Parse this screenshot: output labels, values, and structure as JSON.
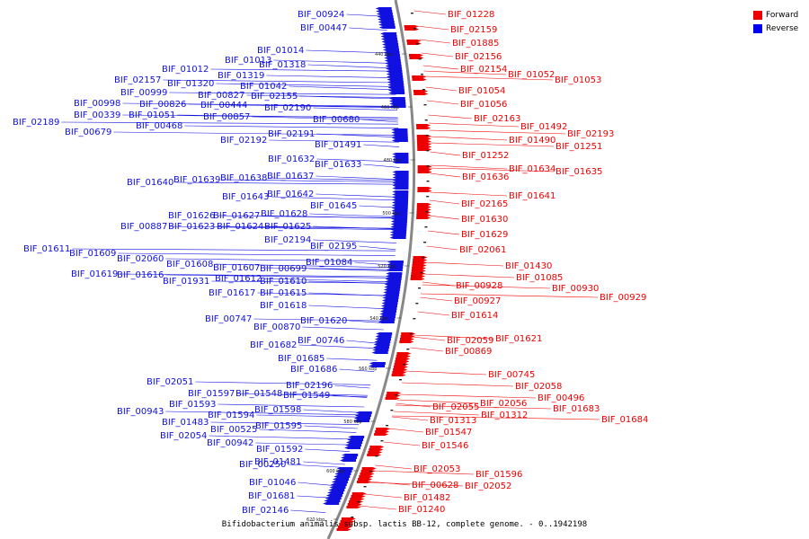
{
  "caption": "Bifidobacterium animalis subsp. lactis BB-12, complete genome. - 0..1942198",
  "legend": [
    {
      "label": "Forward",
      "color": "#ee0000"
    },
    {
      "label": "Reverse",
      "color": "#0000ee"
    }
  ],
  "colors": {
    "forward": "#ee0000",
    "reverse": "#1010e0",
    "backbone": "#888888"
  },
  "scale_ticks": [
    "440 kbp",
    "460 kbp",
    "480 kbp",
    "500 kbp",
    "520 kbp",
    "540 kbp",
    "560 kbp",
    "580 kbp",
    "600 kbp",
    "620 kbp"
  ],
  "reverse_genes": [
    "BIF_00924",
    "BIF_00447",
    "BIF_01014",
    "BIF_01013",
    "BIF_01318",
    "BIF_01012",
    "BIF_01319",
    "BIF_02157",
    "BIF_01320",
    "BIF_01042",
    "BIF_00999",
    "BIF_00827",
    "BIF_02155",
    "BIF_00998",
    "BIF_00826",
    "BIF_00444",
    "BIF_02190",
    "BIF_00339",
    "BIF_01051",
    "BIF_00857",
    "BIF_02189",
    "BIF_00468",
    "BIF_00680",
    "BIF_00679",
    "BIF_02191",
    "BIF_02192",
    "BIF_01491",
    "BIF_01632",
    "BIF_01633",
    "BIF_01637",
    "BIF_01640",
    "BIF_01639",
    "BIF_01638",
    "BIF_01642",
    "BIF_01643",
    "BIF_01645",
    "BIF_01626",
    "BIF_01627",
    "BIF_01628",
    "BIF_00887",
    "BIF_01623",
    "BIF_01624",
    "BIF_01625",
    "BIF_02194",
    "BIF_02195",
    "BIF_01611",
    "BIF_01609",
    "BIF_02060",
    "BIF_01084",
    "BIF_01608",
    "BIF_01607",
    "BIF_00699",
    "BIF_01619",
    "BIF_01616",
    "BIF_01612",
    "BIF_01931",
    "BIF_01610",
    "BIF_01617",
    "BIF_01615",
    "BIF_01618",
    "BIF_00747",
    "BIF_01620",
    "BIF_00870",
    "BIF_00746",
    "BIF_01682",
    "BIF_01685",
    "BIF_01686",
    "BIF_02196",
    "BIF_02051",
    "BIF_01597",
    "BIF_01548",
    "BIF_01549",
    "BIF_01593",
    "BIF_01598",
    "BIF_00943",
    "BIF_01594",
    "BIF_01483",
    "BIF_01595",
    "BIF_00525",
    "BIF_02054",
    "BIF_00942",
    "BIF_01592",
    "BIF_01481",
    "BIF_00250",
    "BIF_01046",
    "BIF_01681",
    "BIF_02146"
  ],
  "forward_genes": [
    "BIF_01228",
    "BIF_02159",
    "BIF_01885",
    "BIF_02156",
    "BIF_02154",
    "BIF_01052",
    "BIF_01053",
    "BIF_01054",
    "BIF_01056",
    "BIF_02163",
    "BIF_01492",
    "BIF_02193",
    "BIF_01490",
    "BIF_01251",
    "BIF_01252",
    "BIF_01634",
    "BIF_01635",
    "BIF_01636",
    "BIF_01641",
    "BIF_02165",
    "BIF_01630",
    "BIF_01629",
    "BIF_02061",
    "BIF_01430",
    "BIF_01085",
    "BIF_00930",
    "BIF_00928",
    "BIF_00929",
    "BIF_00927",
    "BIF_01614",
    "BIF_01621",
    "BIF_02059",
    "BIF_00869",
    "BIF_00745",
    "BIF_02058",
    "BIF_00496",
    "BIF_02056",
    "BIF_01683",
    "BIF_02055",
    "BIF_01312",
    "BIF_01684",
    "BIF_01313",
    "BIF_01547",
    "BIF_01546",
    "BIF_02053",
    "BIF_01596",
    "BIF_00628",
    "BIF_02052",
    "BIF_01482",
    "BIF_01240"
  ]
}
